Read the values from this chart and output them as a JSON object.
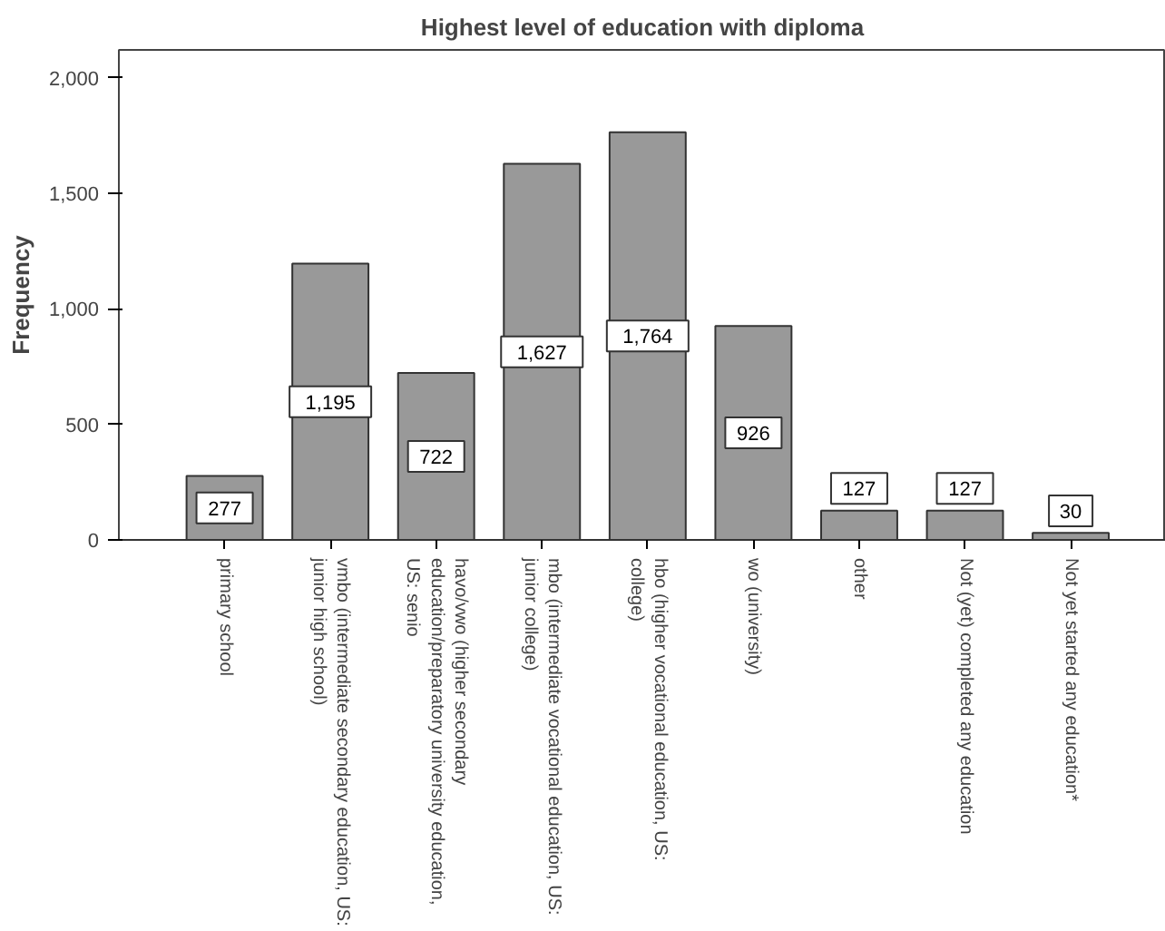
{
  "chart_data": {
    "type": "bar",
    "title": "Highest level of education with diploma",
    "ylabel": "Frequency",
    "categories": [
      "primary school",
      "vmbo (intermediate secondary education, US: junior high school)",
      "havo/vwo (higher secondary education/preparatory university education, US: senio",
      "mbo (intermediate vocational education, US: junior college)",
      "hbo (higher vocational education, US: college)",
      "wo (university)",
      "other",
      "Not (yet) completed any education",
      "Not yet started any education*"
    ],
    "values": [
      277,
      1195,
      722,
      1627,
      1764,
      926,
      127,
      127,
      30
    ],
    "value_labels": [
      "277",
      "1,195",
      "722",
      "1,627",
      "1,764",
      "926",
      "127",
      "127",
      "30"
    ],
    "color": "#999999",
    "grid": false,
    "ylim": [
      0,
      2120
    ],
    "yticks": [
      0,
      {
        "value": 500,
        "label": "500"
      },
      {
        "value": 1000,
        "label": "1,000"
      },
      {
        "value": 1500,
        "label": "1,500"
      },
      {
        "value": 2000,
        "label": "2,000"
      }
    ]
  }
}
